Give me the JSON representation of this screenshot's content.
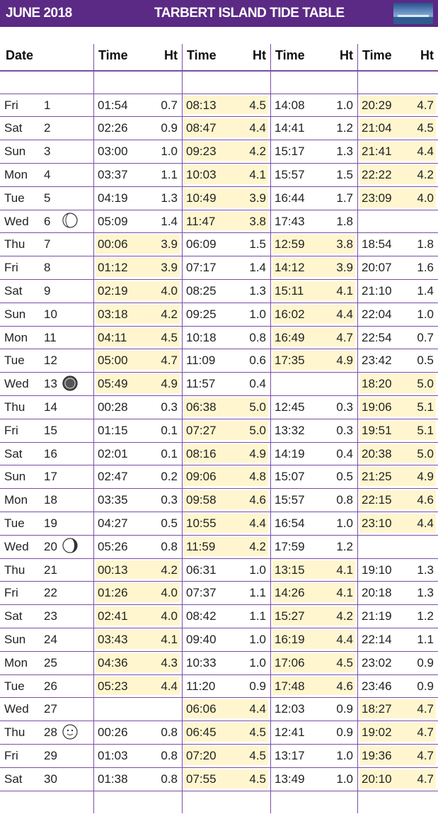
{
  "header": {
    "month": "JUNE 2018",
    "title": "TARBERT ISLAND TIDE TABLE"
  },
  "table": {
    "columns": [
      "Date",
      "Time",
      "Ht",
      "Time",
      "Ht",
      "Time",
      "Ht",
      "Time",
      "Ht"
    ],
    "rows": [
      {
        "day": "Fri",
        "date": "1",
        "tides": [
          [
            "01:54",
            "0.7"
          ],
          [
            "08:13",
            "4.5"
          ],
          [
            "14:08",
            "1.0"
          ],
          [
            "20:29",
            "4.7"
          ]
        ]
      },
      {
        "day": "Sat",
        "date": "2",
        "tides": [
          [
            "02:26",
            "0.9"
          ],
          [
            "08:47",
            "4.4"
          ],
          [
            "14:41",
            "1.2"
          ],
          [
            "21:04",
            "4.5"
          ]
        ]
      },
      {
        "day": "Sun",
        "date": "3",
        "tides": [
          [
            "03:00",
            "1.0"
          ],
          [
            "09:23",
            "4.2"
          ],
          [
            "15:17",
            "1.3"
          ],
          [
            "21:41",
            "4.4"
          ]
        ]
      },
      {
        "day": "Mon",
        "date": "4",
        "tides": [
          [
            "03:37",
            "1.1"
          ],
          [
            "10:03",
            "4.1"
          ],
          [
            "15:57",
            "1.5"
          ],
          [
            "22:22",
            "4.2"
          ]
        ]
      },
      {
        "day": "Tue",
        "date": "5",
        "tides": [
          [
            "04:19",
            "1.3"
          ],
          [
            "10:49",
            "3.9"
          ],
          [
            "16:44",
            "1.7"
          ],
          [
            "23:09",
            "4.0"
          ]
        ]
      },
      {
        "day": "Wed",
        "date": "6",
        "tides": [
          [
            "05:09",
            "1.4"
          ],
          [
            "11:47",
            "3.8"
          ],
          [
            "17:43",
            "1.8"
          ],
          null
        ]
      },
      {
        "day": "Thu",
        "date": "7",
        "tides": [
          [
            "00:06",
            "3.9"
          ],
          [
            "06:09",
            "1.5"
          ],
          [
            "12:59",
            "3.8"
          ],
          [
            "18:54",
            "1.8"
          ]
        ]
      },
      {
        "day": "Fri",
        "date": "8",
        "tides": [
          [
            "01:12",
            "3.9"
          ],
          [
            "07:17",
            "1.4"
          ],
          [
            "14:12",
            "3.9"
          ],
          [
            "20:07",
            "1.6"
          ]
        ]
      },
      {
        "day": "Sat",
        "date": "9",
        "tides": [
          [
            "02:19",
            "4.0"
          ],
          [
            "08:25",
            "1.3"
          ],
          [
            "15:11",
            "4.1"
          ],
          [
            "21:10",
            "1.4"
          ]
        ]
      },
      {
        "day": "Sun",
        "date": "10",
        "tides": [
          [
            "03:18",
            "4.2"
          ],
          [
            "09:25",
            "1.0"
          ],
          [
            "16:02",
            "4.4"
          ],
          [
            "22:04",
            "1.0"
          ]
        ]
      },
      {
        "day": "Mon",
        "date": "11",
        "tides": [
          [
            "04:11",
            "4.5"
          ],
          [
            "10:18",
            "0.8"
          ],
          [
            "16:49",
            "4.7"
          ],
          [
            "22:54",
            "0.7"
          ]
        ]
      },
      {
        "day": "Tue",
        "date": "12",
        "tides": [
          [
            "05:00",
            "4.7"
          ],
          [
            "11:09",
            "0.6"
          ],
          [
            "17:35",
            "4.9"
          ],
          [
            "23:42",
            "0.5"
          ]
        ]
      },
      {
        "day": "Wed",
        "date": "13",
        "tides": [
          [
            "05:49",
            "4.9"
          ],
          [
            "11:57",
            "0.4"
          ],
          null,
          [
            "18:20",
            "5.0"
          ]
        ]
      },
      {
        "day": "Thu",
        "date": "14",
        "tides": [
          [
            "00:28",
            "0.3"
          ],
          [
            "06:38",
            "5.0"
          ],
          [
            "12:45",
            "0.3"
          ],
          [
            "19:06",
            "5.1"
          ]
        ]
      },
      {
        "day": "Fri",
        "date": "15",
        "tides": [
          [
            "01:15",
            "0.1"
          ],
          [
            "07:27",
            "5.0"
          ],
          [
            "13:32",
            "0.3"
          ],
          [
            "19:51",
            "5.1"
          ]
        ]
      },
      {
        "day": "Sat",
        "date": "16",
        "tides": [
          [
            "02:01",
            "0.1"
          ],
          [
            "08:16",
            "4.9"
          ],
          [
            "14:19",
            "0.4"
          ],
          [
            "20:38",
            "5.0"
          ]
        ]
      },
      {
        "day": "Sun",
        "date": "17",
        "tides": [
          [
            "02:47",
            "0.2"
          ],
          [
            "09:06",
            "4.8"
          ],
          [
            "15:07",
            "0.5"
          ],
          [
            "21:25",
            "4.9"
          ]
        ]
      },
      {
        "day": "Mon",
        "date": "18",
        "tides": [
          [
            "03:35",
            "0.3"
          ],
          [
            "09:58",
            "4.6"
          ],
          [
            "15:57",
            "0.8"
          ],
          [
            "22:15",
            "4.6"
          ]
        ]
      },
      {
        "day": "Tue",
        "date": "19",
        "tides": [
          [
            "04:27",
            "0.5"
          ],
          [
            "10:55",
            "4.4"
          ],
          [
            "16:54",
            "1.0"
          ],
          [
            "23:10",
            "4.4"
          ]
        ]
      },
      {
        "day": "Wed",
        "date": "20",
        "tides": [
          [
            "05:26",
            "0.8"
          ],
          [
            "11:59",
            "4.2"
          ],
          [
            "17:59",
            "1.2"
          ],
          null
        ]
      },
      {
        "day": "Thu",
        "date": "21",
        "tides": [
          [
            "00:13",
            "4.2"
          ],
          [
            "06:31",
            "1.0"
          ],
          [
            "13:15",
            "4.1"
          ],
          [
            "19:10",
            "1.3"
          ]
        ]
      },
      {
        "day": "Fri",
        "date": "22",
        "tides": [
          [
            "01:26",
            "4.0"
          ],
          [
            "07:37",
            "1.1"
          ],
          [
            "14:26",
            "4.1"
          ],
          [
            "20:18",
            "1.3"
          ]
        ]
      },
      {
        "day": "Sat",
        "date": "23",
        "tides": [
          [
            "02:41",
            "4.0"
          ],
          [
            "08:42",
            "1.1"
          ],
          [
            "15:27",
            "4.2"
          ],
          [
            "21:19",
            "1.2"
          ]
        ]
      },
      {
        "day": "Sun",
        "date": "24",
        "tides": [
          [
            "03:43",
            "4.1"
          ],
          [
            "09:40",
            "1.0"
          ],
          [
            "16:19",
            "4.4"
          ],
          [
            "22:14",
            "1.1"
          ]
        ]
      },
      {
        "day": "Mon",
        "date": "25",
        "tides": [
          [
            "04:36",
            "4.3"
          ],
          [
            "10:33",
            "1.0"
          ],
          [
            "17:06",
            "4.5"
          ],
          [
            "23:02",
            "0.9"
          ]
        ]
      },
      {
        "day": "Tue",
        "date": "26",
        "tides": [
          [
            "05:23",
            "4.4"
          ],
          [
            "11:20",
            "0.9"
          ],
          [
            "17:48",
            "4.6"
          ],
          [
            "23:46",
            "0.9"
          ]
        ]
      },
      {
        "day": "Wed",
        "date": "27",
        "tides": [
          null,
          [
            "06:06",
            "4.4"
          ],
          [
            "12:03",
            "0.9"
          ],
          [
            "18:27",
            "4.7"
          ]
        ]
      },
      {
        "day": "Thu",
        "date": "28",
        "tides": [
          [
            "00:26",
            "0.8"
          ],
          [
            "06:45",
            "4.5"
          ],
          [
            "12:41",
            "0.9"
          ],
          [
            "19:02",
            "4.7"
          ]
        ]
      },
      {
        "day": "Fri",
        "date": "29",
        "tides": [
          [
            "01:03",
            "0.8"
          ],
          [
            "07:20",
            "4.5"
          ],
          [
            "13:17",
            "1.0"
          ],
          [
            "19:36",
            "4.7"
          ]
        ]
      },
      {
        "day": "Sat",
        "date": "30",
        "tides": [
          [
            "01:38",
            "0.8"
          ],
          [
            "07:55",
            "4.5"
          ],
          [
            "13:49",
            "1.0"
          ],
          [
            "20:10",
            "4.7"
          ]
        ]
      }
    ]
  }
}
